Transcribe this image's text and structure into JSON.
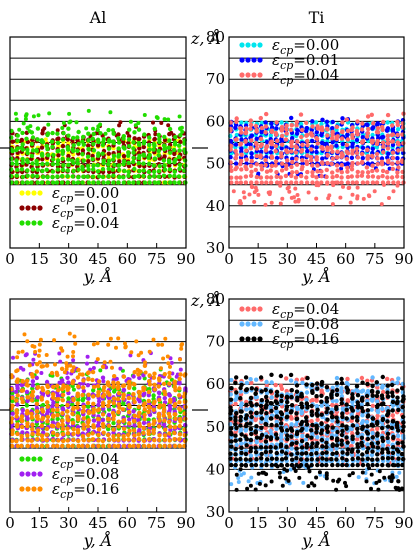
{
  "chart_data": [
    {
      "type": "scatter",
      "title": "Al",
      "xlabel": "y, Å",
      "ylabel": "",
      "xlim": [
        0,
        90
      ],
      "ylim": [
        30,
        80
      ],
      "xticks": [
        "0",
        "15",
        "30",
        "45",
        "60",
        "75",
        "90"
      ],
      "yticks": [],
      "grid": "horizontal",
      "grid_values": [
        45,
        50,
        55,
        60,
        65,
        70,
        75
      ],
      "legend_position": "bottom-left",
      "series": [
        {
          "name": "=0.00",
          "eps": "0.00",
          "color": "#ffff00",
          "zmin": 45.5,
          "zmax": 55.2,
          "rough": 0.6,
          "outliers": 3
        },
        {
          "name": "=0.01",
          "eps": "0.01",
          "color": "#8b0000",
          "zmin": 45.5,
          "zmax": 56.4,
          "rough": 1.4,
          "outliers": 18
        },
        {
          "name": "=0.04",
          "eps": "0.04",
          "color": "#22dd00",
          "zmin": 45.5,
          "zmax": 57.0,
          "rough": 2.2,
          "outliers": 40
        }
      ]
    },
    {
      "type": "scatter",
      "title": "Ti",
      "xlabel": "y, Å",
      "ylabel": "z, Å",
      "xlim": [
        0,
        90
      ],
      "ylim": [
        30,
        80
      ],
      "xticks": [
        "0",
        "15",
        "30",
        "45",
        "60",
        "75",
        "90"
      ],
      "yticks": [
        "30",
        "40",
        "50",
        "60",
        "70",
        "80"
      ],
      "grid": "horizontal",
      "grid_values": [
        35,
        40,
        45,
        50,
        55,
        60,
        65,
        70,
        75
      ],
      "legend_position": "top-left",
      "series": [
        {
          "name": "=0.00",
          "eps": "0.00",
          "color": "#00e5ee",
          "zmin": 52.5,
          "zmax": 59.5,
          "rough": 0.4,
          "outliers": 0
        },
        {
          "name": "=0.01",
          "eps": "0.01",
          "color": "#0000ff",
          "zmin": 50.0,
          "zmax": 59.5,
          "rough": 2.0,
          "outliers": 25
        },
        {
          "name": "=0.04",
          "eps": "0.04",
          "color": "#ff6a6a",
          "zmin": 45.5,
          "zmax": 59.5,
          "rough": 3.5,
          "outliers": 60
        }
      ]
    },
    {
      "type": "scatter",
      "title": "",
      "xlabel": "y, Å",
      "ylabel": "",
      "xlim": [
        0,
        90
      ],
      "ylim": [
        30,
        80
      ],
      "xticks": [
        "0",
        "15",
        "30",
        "45",
        "60",
        "75",
        "90"
      ],
      "yticks": [],
      "grid": "horizontal",
      "grid_values": [
        45,
        50,
        55,
        60,
        65,
        70,
        75
      ],
      "legend_position": "bottom-left",
      "series": [
        {
          "name": "=0.04",
          "eps": "0.04",
          "color": "#22dd00",
          "zmin": 45.5,
          "zmax": 58.5,
          "rough": 2.0,
          "outliers": 30
        },
        {
          "name": "=0.08",
          "eps": "0.08",
          "color": "#a020f0",
          "zmin": 45.5,
          "zmax": 60.0,
          "rough": 3.0,
          "outliers": 50
        },
        {
          "name": "=0.16",
          "eps": "0.16",
          "color": "#ff8c00",
          "zmin": 45.5,
          "zmax": 62.0,
          "rough": 4.0,
          "outliers": 70
        }
      ]
    },
    {
      "type": "scatter",
      "title": "",
      "xlabel": "y, Å",
      "ylabel": "z, Å",
      "xlim": [
        0,
        90
      ],
      "ylim": [
        30,
        80
      ],
      "xticks": [
        "0",
        "15",
        "30",
        "45",
        "60",
        "75",
        "90"
      ],
      "yticks": [
        "30",
        "40",
        "50",
        "60",
        "70",
        "80"
      ],
      "grid": "horizontal",
      "grid_values": [
        35,
        40,
        45,
        50,
        55,
        60,
        65,
        70,
        75
      ],
      "legend_position": "top-left",
      "series": [
        {
          "name": "=0.04",
          "eps": "0.04",
          "color": "#ff6a6a",
          "zmin": 45.5,
          "zmax": 59.5,
          "rough": 3.0,
          "outliers": 40
        },
        {
          "name": "=0.08",
          "eps": "0.08",
          "color": "#63b8ff",
          "zmin": 42.0,
          "zmax": 59.5,
          "rough": 3.5,
          "outliers": 50
        },
        {
          "name": "=0.16",
          "eps": "0.16",
          "color": "#000000",
          "zmin": 41.0,
          "zmax": 59.5,
          "rough": 4.0,
          "outliers": 70
        }
      ]
    }
  ]
}
